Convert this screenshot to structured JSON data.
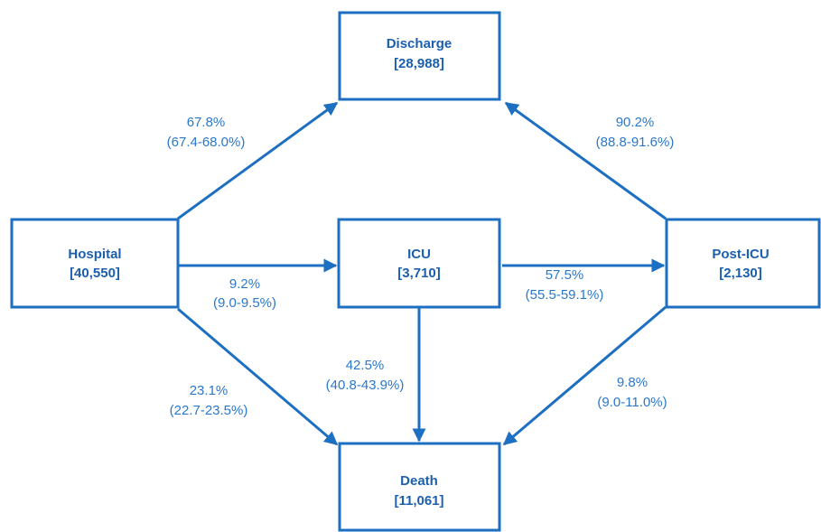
{
  "nodes": [
    {
      "label": "Discharge",
      "count": "[28,988]"
    },
    {
      "label": "Hospital",
      "count": "[40,550]"
    },
    {
      "label": "ICU",
      "count": "[3,710]"
    },
    {
      "label": "Post-ICU",
      "count": "[2,130]"
    },
    {
      "label": "Death",
      "count": "[11,061]"
    }
  ],
  "edges": [
    {
      "percent": "67.8%",
      "interval": "(67.4-68.0%)"
    },
    {
      "percent": "90.2%",
      "interval": "(88.8-91.6%)"
    },
    {
      "percent": "9.2%",
      "interval": "(9.0-9.5%)"
    },
    {
      "percent": "57.5%",
      "interval": "(55.5-59.1%)"
    },
    {
      "percent": "23.1%",
      "interval": "(22.7-23.5%)"
    },
    {
      "percent": "42.5%",
      "interval": "(40.8-43.9%)"
    },
    {
      "percent": "9.8%",
      "interval": "(9.0-11.0%)"
    }
  ]
}
